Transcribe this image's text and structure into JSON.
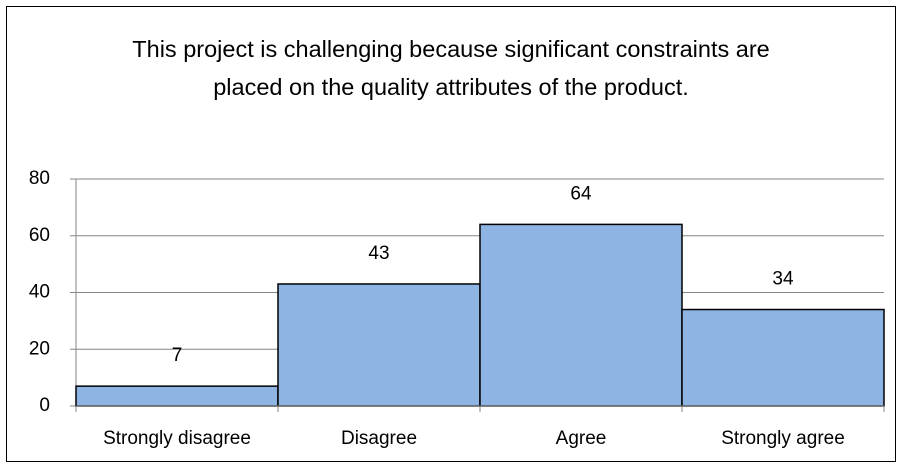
{
  "chart_data": {
    "type": "bar",
    "title": "This project is challenging because significant constraints are placed on the quality attributes of the product.",
    "categories": [
      "Strongly disagree",
      "Disagree",
      "Agree",
      "Strongly agree"
    ],
    "values": [
      7,
      43,
      64,
      34
    ],
    "color": "#8eb4e3",
    "ylim": [
      0,
      80
    ],
    "yticks": [
      0,
      20,
      40,
      60,
      80
    ],
    "grid": true
  }
}
